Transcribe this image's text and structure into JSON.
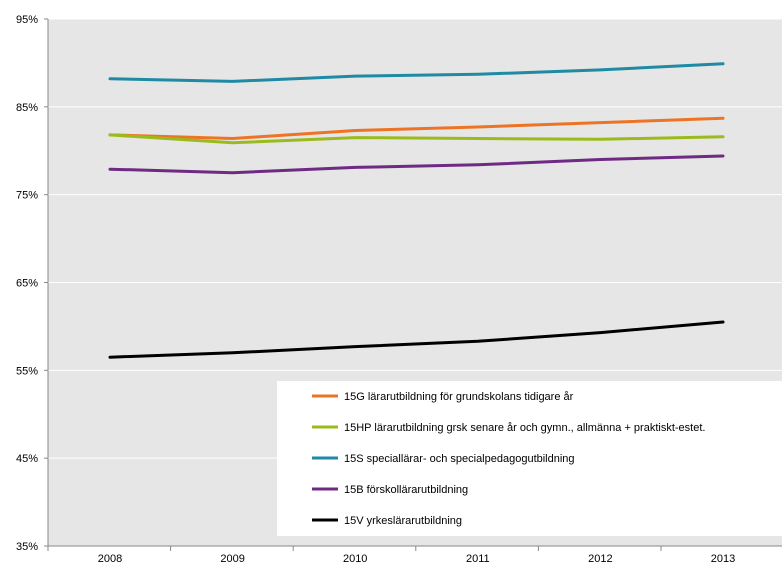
{
  "chart_data": {
    "type": "line",
    "title": "",
    "xlabel": "",
    "ylabel": "",
    "categories": [
      "2008",
      "2009",
      "2010",
      "2011",
      "2012",
      "2013"
    ],
    "ylim": [
      35,
      95
    ],
    "yticks": [
      35,
      45,
      55,
      65,
      75,
      85,
      95
    ],
    "ytick_labels": [
      "35%",
      "45%",
      "55%",
      "65%",
      "75%",
      "85%",
      "95%"
    ],
    "grid": true,
    "legend_position": "bottom-right",
    "series": [
      {
        "name": "15G lärarutbildning för grundskolans tidigare år",
        "color": "#ED7425",
        "values": [
          81.8,
          81.4,
          82.3,
          82.7,
          83.2,
          83.7
        ]
      },
      {
        "name": "15HP lärarutbildning grsk senare år och gymn., allmänna + praktiskt-estet.",
        "color": "#9BBB1C",
        "values": [
          81.8,
          80.9,
          81.5,
          81.4,
          81.3,
          81.6
        ]
      },
      {
        "name": "15S speciallärar- och specialpedagogutbildning",
        "color": "#1F8AA3",
        "values": [
          88.2,
          87.9,
          88.5,
          88.7,
          89.2,
          89.9
        ]
      },
      {
        "name": "15B förskollärarutbildning",
        "color": "#6F2A83",
        "values": [
          77.9,
          77.5,
          78.1,
          78.4,
          79.0,
          79.4
        ]
      },
      {
        "name": "15V yrkeslärarutbildning",
        "color": "#000000",
        "values": [
          56.5,
          57.0,
          57.7,
          58.3,
          59.3,
          60.5
        ]
      }
    ]
  }
}
